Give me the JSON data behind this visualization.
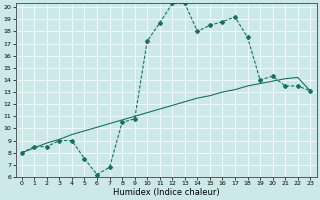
{
  "xlabel": "Humidex (Indice chaleur)",
  "background_color": "#cce8e8",
  "line_color": "#1a7060",
  "x_main": [
    0,
    1,
    2,
    3,
    4,
    5,
    6,
    7,
    8,
    9,
    10,
    11,
    12,
    13,
    14,
    15,
    16,
    17,
    18,
    19,
    20,
    21,
    22,
    23
  ],
  "y_main": [
    8,
    8.5,
    8.5,
    9,
    9,
    7.5,
    6.2,
    6.8,
    10.5,
    10.8,
    17.2,
    18.7,
    20.3,
    20.3,
    18.0,
    18.5,
    18.8,
    19.2,
    17.5,
    14.0,
    14.3,
    13.5,
    13.5,
    13.1
  ],
  "y_linear": [
    8.0,
    8.4,
    8.8,
    9.1,
    9.5,
    9.8,
    10.1,
    10.4,
    10.7,
    11.0,
    11.3,
    11.6,
    11.9,
    12.2,
    12.5,
    12.7,
    13.0,
    13.2,
    13.5,
    13.7,
    13.9,
    14.1,
    14.2,
    13.1
  ],
  "ylim": [
    6,
    20
  ],
  "xlim": [
    -0.5,
    23.5
  ],
  "yticks": [
    6,
    7,
    8,
    9,
    10,
    11,
    12,
    13,
    14,
    15,
    16,
    17,
    18,
    19,
    20
  ],
  "xticks": [
    0,
    1,
    2,
    3,
    4,
    5,
    6,
    7,
    8,
    9,
    10,
    11,
    12,
    13,
    14,
    15,
    16,
    17,
    18,
    19,
    20,
    21,
    22,
    23
  ],
  "grid_color": "#ffffff",
  "marker": "D",
  "markersize": 2.0,
  "linewidth_main": 0.8,
  "linewidth_trend": 0.8,
  "tick_fontsize": 4.5,
  "xlabel_fontsize": 6.0
}
